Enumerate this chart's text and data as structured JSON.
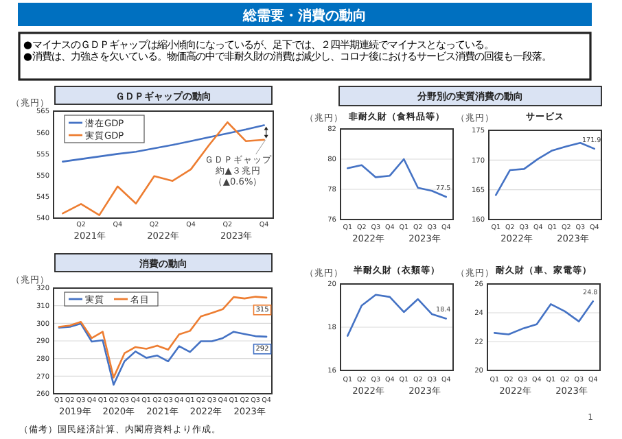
{
  "chart_data": [
    {
      "type": "other",
      "title": "総需要・消費の動向",
      "annotations": [
        "●マイナスのＧＤＰギャップは縮小傾向になっているが、足下では、２四半期連続でマイナスとなっている。",
        "●消費は、力強さを欠いている。物価高の中で非耐久財の消費は減少し、コロナ後におけるサービス消費の回復も一段落。",
        "分野別の実質消費の動向",
        "（備考）国民経済計算、内閣府資料より作成。",
        "1"
      ]
    },
    {
      "type": "line",
      "title": "ＧＤＰギャップの動向",
      "ylabel": "（兆円）",
      "categories": [
        null,
        "Q2",
        null,
        "Q4",
        null,
        "Q2",
        null,
        "Q4",
        null,
        "Q2",
        null,
        "Q4"
      ],
      "ylim": [
        540,
        565
      ],
      "yticks": [
        540,
        545,
        550,
        555,
        560,
        565
      ],
      "legend": "top left",
      "series": [
        {
          "name": "潜在GDP",
          "color": "#4472c4",
          "values": [
            553.2,
            553.8,
            554.4,
            555.0,
            555.5,
            556.3,
            557.1,
            558.0,
            558.9,
            559.8,
            560.7,
            561.7
          ]
        },
        {
          "name": "実質GDP",
          "color": "#ed7d31",
          "values": [
            541.1,
            543.3,
            540.7,
            547.4,
            543.4,
            549.8,
            548.7,
            551.4,
            557.1,
            562.4,
            558.0,
            558.3
          ]
        }
      ],
      "annotations": [
        "2021年",
        "2022年",
        "2023年",
        "ＧＤＰギャップ",
        "約▲３兆円",
        "（▲0.6%）"
      ]
    },
    {
      "type": "line",
      "title": "消費の動向",
      "ylabel": "（兆円）",
      "categories": [
        "Q1",
        "Q2",
        "Q3",
        "Q4",
        "Q1",
        "Q2",
        "Q3",
        "Q4",
        "Q1",
        "Q2",
        "Q3",
        "Q4",
        "Q1",
        "Q2",
        "Q3",
        "Q4",
        "Q1",
        "Q2",
        "Q3",
        "Q4"
      ],
      "ylim": [
        260,
        320
      ],
      "yticks": [
        260,
        270,
        280,
        290,
        300,
        310,
        320
      ],
      "grid": "y",
      "legend": "top left",
      "series": [
        {
          "name": "実質",
          "color": "#4472c4",
          "values": [
            297.5,
            298.0,
            299.8,
            289.6,
            290.4,
            265.1,
            278.4,
            284.0,
            280.4,
            281.7,
            278.4,
            287.0,
            283.7,
            289.8,
            289.8,
            291.6,
            295.2,
            293.9,
            292.7,
            292.4
          ],
          "value_labels": [
            null,
            null,
            null,
            null,
            null,
            null,
            null,
            null,
            null,
            null,
            null,
            null,
            null,
            null,
            null,
            null,
            null,
            null,
            null,
            "292"
          ]
        },
        {
          "name": "名目",
          "color": "#ed7d31",
          "values": [
            298.0,
            298.8,
            300.8,
            291.6,
            295.2,
            269.2,
            283.0,
            286.5,
            285.5,
            287.3,
            285.0,
            293.7,
            295.7,
            303.9,
            305.9,
            308.0,
            314.9,
            314.1,
            315.1,
            314.6
          ],
          "value_labels": [
            null,
            null,
            null,
            null,
            null,
            null,
            null,
            null,
            null,
            null,
            null,
            null,
            null,
            null,
            null,
            null,
            null,
            null,
            null,
            "315"
          ]
        }
      ],
      "annotations": [
        "2019年",
        "2020年",
        "2021年",
        "2022年",
        "2023年"
      ]
    },
    {
      "type": "line",
      "title": "非耐久財（食料品等）",
      "ylabel": "（兆円）",
      "categories": [
        "Q1",
        "Q2",
        "Q3",
        "Q4",
        "Q1",
        "Q2",
        "Q3",
        "Q4"
      ],
      "ylim": [
        76,
        82
      ],
      "yticks": [
        76,
        78,
        80,
        82
      ],
      "grid": "y",
      "series": [
        {
          "color": "#4472c4",
          "values": [
            79.4,
            79.6,
            78.8,
            78.9,
            80.0,
            78.1,
            77.9,
            77.5
          ],
          "value_labels": [
            null,
            null,
            null,
            null,
            null,
            null,
            null,
            "77.5"
          ]
        }
      ],
      "annotations": [
        "2022年",
        "2023年"
      ]
    },
    {
      "type": "line",
      "title": "サービス",
      "ylabel": "（兆円）",
      "categories": [
        "Q1",
        "Q2",
        "Q3",
        "Q4",
        "Q1",
        "Q2",
        "Q3",
        "Q4"
      ],
      "ylim": [
        160,
        175
      ],
      "yticks": [
        160,
        165,
        170,
        175
      ],
      "grid": "y",
      "series": [
        {
          "color": "#4472c4",
          "values": [
            164.1,
            168.3,
            168.5,
            170.2,
            171.6,
            172.3,
            172.9,
            171.9
          ],
          "value_labels": [
            null,
            null,
            null,
            null,
            null,
            null,
            null,
            "171.9"
          ]
        }
      ],
      "annotations": [
        "2022年",
        "2023年"
      ]
    },
    {
      "type": "line",
      "title": "半耐久財（衣類等）",
      "ylabel": "（兆円）",
      "categories": [
        "Q1",
        "Q2",
        "Q3",
        "Q4",
        "Q1",
        "Q2",
        "Q3",
        "Q4"
      ],
      "ylim": [
        16,
        20
      ],
      "yticks": [
        16,
        18,
        20
      ],
      "grid": "y",
      "series": [
        {
          "color": "#4472c4",
          "values": [
            17.6,
            19.0,
            19.5,
            19.4,
            18.7,
            19.3,
            18.6,
            18.4
          ],
          "value_labels": [
            null,
            null,
            null,
            null,
            null,
            null,
            null,
            "18.4"
          ]
        }
      ],
      "annotations": [
        "2022年",
        "2023年"
      ]
    },
    {
      "type": "line",
      "title": "耐久財（車、家電等）",
      "ylabel": "（兆円）",
      "categories": [
        "Q1",
        "Q2",
        "Q3",
        "Q4",
        "Q1",
        "Q2",
        "Q3",
        "Q4"
      ],
      "ylim": [
        20,
        26
      ],
      "yticks": [
        20,
        22,
        24,
        26
      ],
      "grid": "y",
      "series": [
        {
          "color": "#4472c4",
          "values": [
            22.6,
            22.5,
            22.9,
            23.2,
            24.6,
            24.1,
            23.4,
            24.8
          ],
          "value_labels": [
            null,
            null,
            null,
            null,
            null,
            null,
            null,
            "24.8"
          ]
        }
      ],
      "annotations": [
        "2022年",
        "2023年"
      ]
    }
  ]
}
